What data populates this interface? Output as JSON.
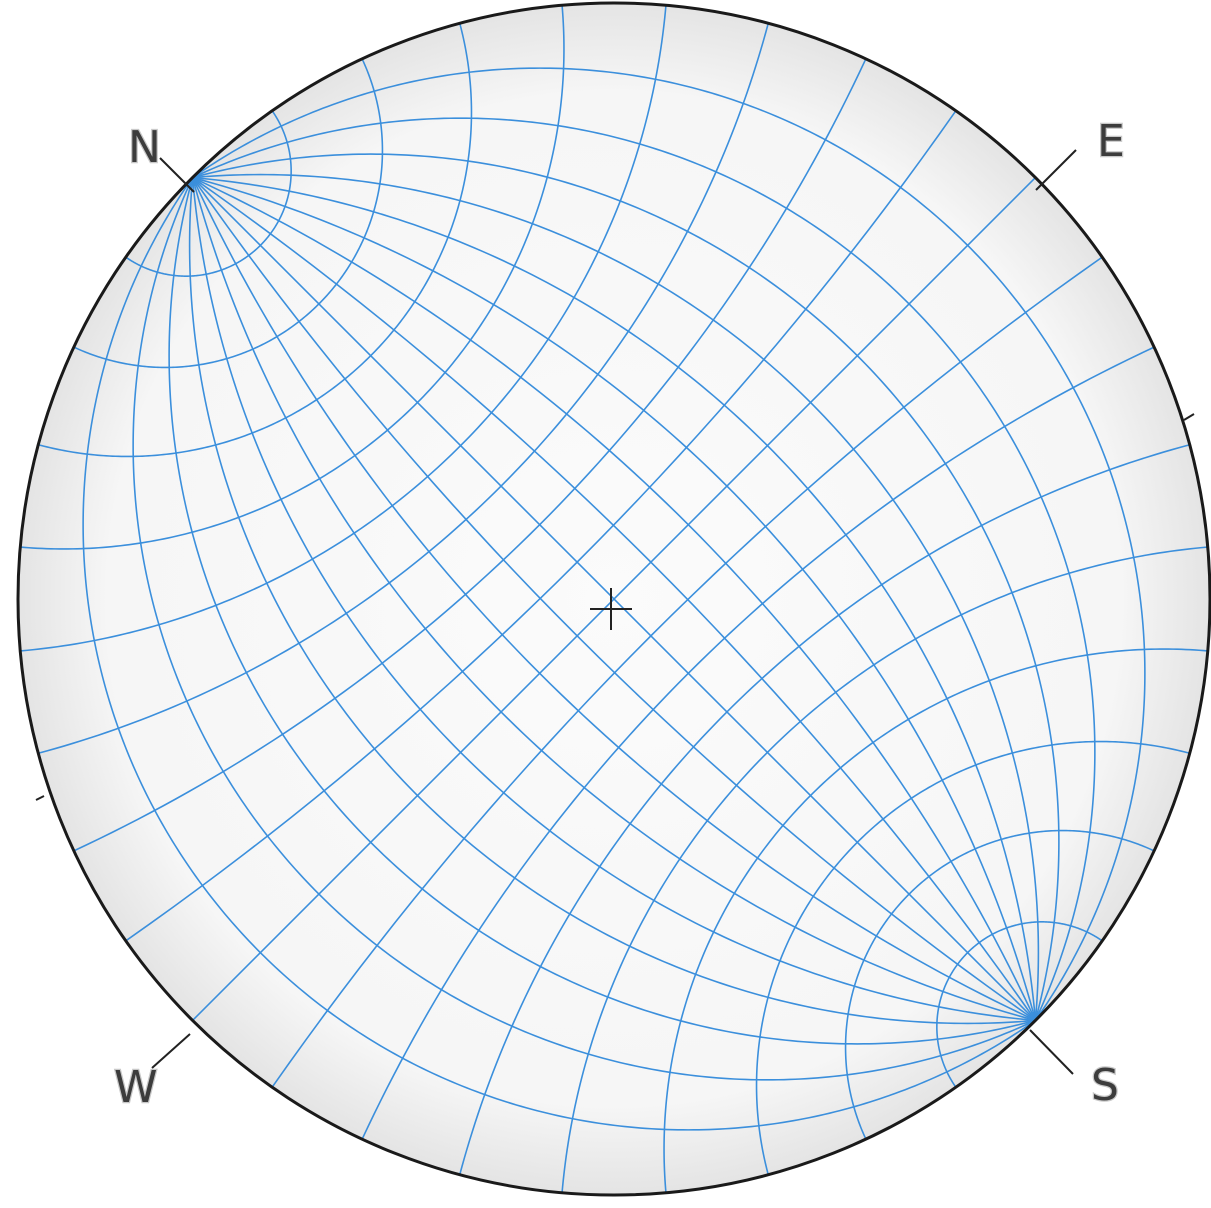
{
  "net": {
    "labels": {
      "north": "N",
      "east": "E",
      "south": "S",
      "west": "W"
    },
    "colors": {
      "background": "#ffffff",
      "disc_fill": "#f7f7f7",
      "grid": "#3b8fdc",
      "outline": "#1a1a1a",
      "tick": "#222222",
      "label": "#3c3c3c"
    }
  }
}
